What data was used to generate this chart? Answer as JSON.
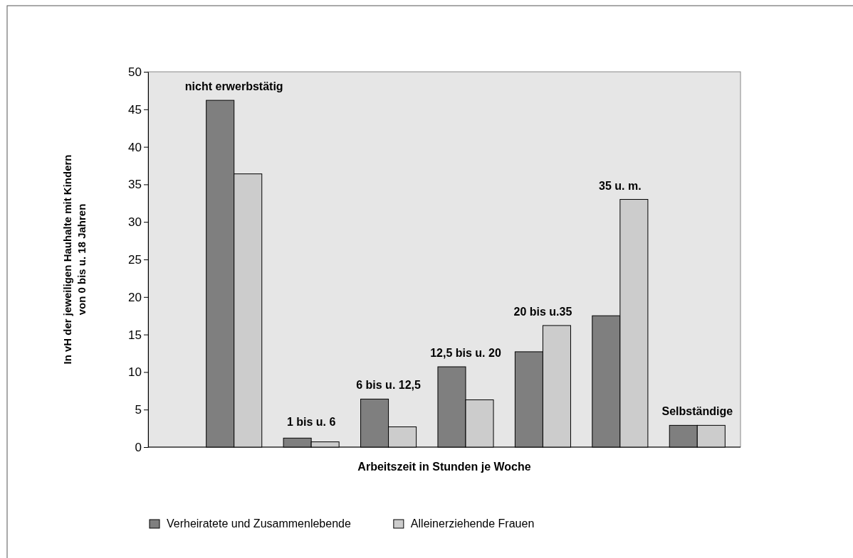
{
  "chart_data": {
    "type": "bar",
    "xlabel": "Arbeitszeit in Stunden je Woche",
    "ylabel": "In vH der jeweiligen Hauhalte mit Kindern von 0 bis  u. 18 Jahren",
    "categories": [
      "nicht erwerbstätig",
      "1 bis u. 6",
      "6 bis u. 12,5",
      "12,5 bis u. 20",
      "20 bis u.35",
      "35 u. m.",
      "Selbständige"
    ],
    "series": [
      {
        "name": "Verheiratete und Zusammenlebende",
        "color": "#7f7f7f",
        "values": [
          46.2,
          1.2,
          6.4,
          10.7,
          12.7,
          17.5,
          2.9
        ]
      },
      {
        "name": "Alleinerziehende Frauen",
        "color": "#cccccc",
        "values": [
          36.4,
          0.7,
          2.7,
          6.3,
          16.2,
          33.0,
          2.9
        ]
      }
    ],
    "ylim": [
      0,
      50
    ],
    "yticks": [
      0,
      5,
      10,
      15,
      20,
      25,
      30,
      35,
      40,
      45,
      50
    ],
    "grid": false,
    "legend": "bottom"
  }
}
